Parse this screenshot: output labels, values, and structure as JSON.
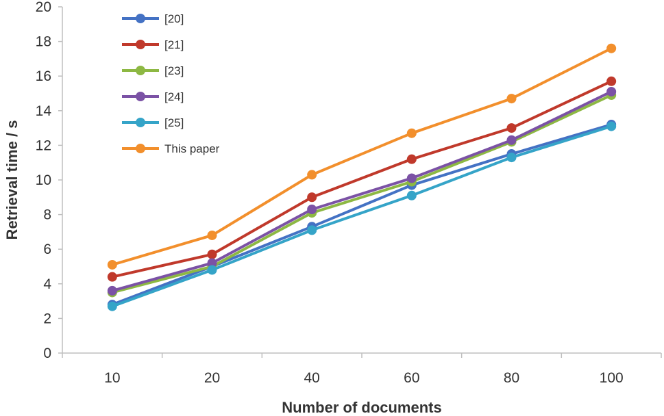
{
  "chart_data": {
    "type": "line",
    "title": "",
    "xlabel": "Number of documents",
    "ylabel": "Retrieval time / s",
    "categories": [
      "10",
      "20",
      "40",
      "60",
      "80",
      "100"
    ],
    "ylim": [
      0,
      20
    ],
    "yticks": [
      0,
      2,
      4,
      6,
      8,
      10,
      12,
      14,
      16,
      18,
      20
    ],
    "grid": false,
    "legend_position": "top-left",
    "series": [
      {
        "name": "[20]",
        "color": "#4472C4",
        "values": [
          2.8,
          5.0,
          7.3,
          9.7,
          11.5,
          13.2
        ]
      },
      {
        "name": "[21]",
        "color": "#C0392B",
        "values": [
          4.4,
          5.7,
          9.0,
          11.2,
          13.0,
          15.7
        ]
      },
      {
        "name": "[23]",
        "color": "#8DB843",
        "values": [
          3.5,
          5.0,
          8.1,
          9.9,
          12.2,
          14.9
        ]
      },
      {
        "name": "[24]",
        "color": "#7B52A5",
        "values": [
          3.6,
          5.2,
          8.3,
          10.1,
          12.3,
          15.1
        ]
      },
      {
        "name": "[25]",
        "color": "#35A4C8",
        "values": [
          2.7,
          4.8,
          7.1,
          9.1,
          11.3,
          13.1
        ]
      },
      {
        "name": "This paper",
        "color": "#F28F2C",
        "values": [
          5.1,
          6.8,
          10.3,
          12.7,
          14.7,
          17.6
        ]
      }
    ]
  }
}
